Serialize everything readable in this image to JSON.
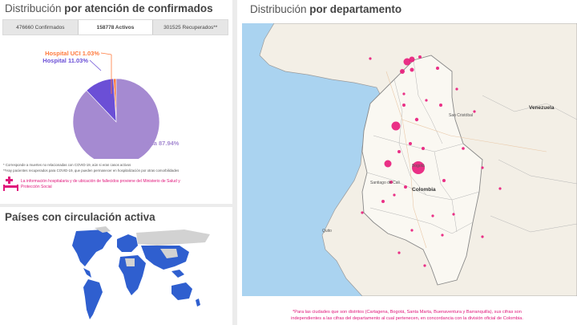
{
  "left_top": {
    "title_normal": "Distribución",
    "title_bold": "por atención de confirmados",
    "tabs": [
      {
        "label": "476660 Confirmados"
      },
      {
        "label": "158778 Activos"
      },
      {
        "label": "301525 Recuperados**"
      }
    ],
    "pie": {
      "slices": [
        {
          "label": "Casa 87.94%",
          "value": 87.94,
          "color": "#a58ad1"
        },
        {
          "label": "Hospital 11.03%",
          "value": 11.03,
          "color": "#6b4fd6"
        },
        {
          "label": "Hospital UCI 1.03%",
          "value": 1.03,
          "color": "#ff7a3d"
        }
      ]
    },
    "note1": "* Corresponde a muertes no relacionadas con COVID-19, aún si eran casos activos",
    "note2": "**Hay pacientes recuperados para COVID-19, que pueden permanecer en hospitalización por otras comorbilidades",
    "pink1": "La información hospitalaria y de ubicación de fallecidos proviene del Ministerio de Salud y",
    "pink2": "Protección Social"
  },
  "left_bottom": {
    "title": "Países con circulación activa"
  },
  "right": {
    "title_normal": "Distribución",
    "title_bold": "por departamento",
    "labels": {
      "venezuela": "Venezuela",
      "colombia": "Colombia",
      "bogota": "Bogotá",
      "san_cristobal": "San Cristóbal",
      "santiago": "Santiago de Cali",
      "quito": "Quito"
    },
    "footnote1": "*Para las ciudades que son distritos (Cartagena, Bogotá, Santa Marta, Buenaventura y Barranquilla), sus cifras son",
    "footnote2": "independientes a las cifras del departamento al cual pertenecen, en concordancia con la división oficial de Colombia.",
    "bubble_color": "#e8197a"
  }
}
